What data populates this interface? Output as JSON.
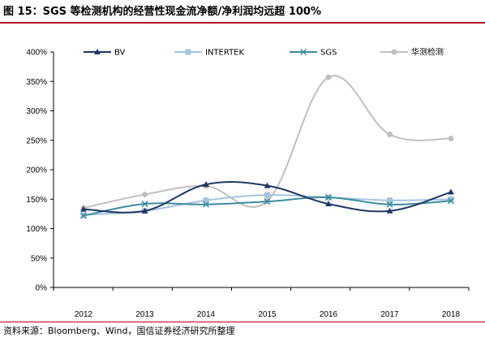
{
  "header": {
    "title": "图 15：SGS 等检测机构的经营性现金流净额/净利润均远超 100%"
  },
  "footer": {
    "source": "资料来源：Bloomberg、Wind，国信证券经济研究所整理"
  },
  "colors": {
    "accent": "#b2001e"
  },
  "chart_data": {
    "type": "line",
    "categories": [
      "2012",
      "2013",
      "2014",
      "2015",
      "2016",
      "2017",
      "2018"
    ],
    "y_ticks": [
      "0%",
      "50%",
      "100%",
      "150%",
      "200%",
      "250%",
      "300%",
      "350%",
      "400%"
    ],
    "ylim": [
      0,
      400
    ],
    "series": [
      {
        "name": "BV",
        "values": [
          133,
          130,
          175,
          173,
          142,
          130,
          162
        ],
        "color": "#1f3864",
        "marker": "triangle"
      },
      {
        "name": "INTERTEK",
        "values": [
          123,
          130,
          148,
          157,
          153,
          148,
          150
        ],
        "color": "#a6c4e0",
        "marker": "square"
      },
      {
        "name": "SGS",
        "values": [
          122,
          142,
          141,
          146,
          153,
          141,
          147
        ],
        "color": "#3b8c9e",
        "marker": "x"
      },
      {
        "name": "华测检测",
        "values": [
          135,
          158,
          172,
          147,
          357,
          260,
          253
        ],
        "color": "#c0c0c0",
        "marker": "circle"
      }
    ],
    "legend_position": "top",
    "grid": false
  }
}
